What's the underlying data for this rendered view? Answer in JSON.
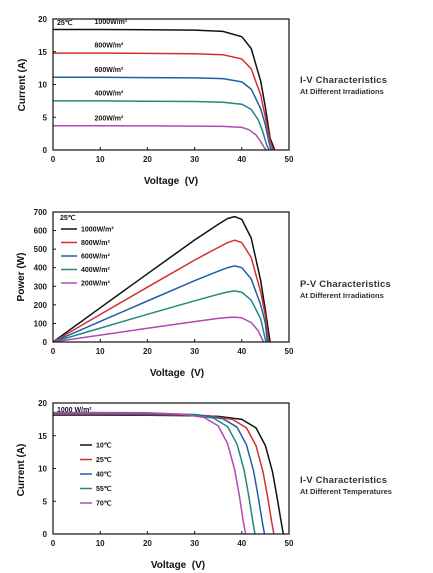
{
  "chart_data": [
    {
      "type": "line",
      "title": "I-V Characteristics",
      "subtitle": "At Different Irradiations",
      "xlabel": "Voltage  (V)",
      "ylabel": "Current (A)",
      "xlim": [
        0,
        50
      ],
      "ylim": [
        0,
        20
      ],
      "xticks": [
        "0",
        "10",
        "20",
        "30",
        "40",
        "50"
      ],
      "yticks": [
        "0",
        "5",
        "10",
        "15",
        "20"
      ],
      "note": "25℃",
      "legend": "inline-labels",
      "grid": false,
      "series": [
        {
          "name": "1000W/m²",
          "color": "#111111",
          "x": [
            0,
            10,
            20,
            30,
            36,
            40,
            42,
            44,
            45,
            46,
            47
          ],
          "y": [
            18.4,
            18.4,
            18.35,
            18.3,
            18.1,
            17.3,
            15.5,
            10.5,
            6.5,
            1.8,
            0
          ]
        },
        {
          "name": "800W/m²",
          "color": "#d32f2f",
          "x": [
            0,
            10,
            20,
            30,
            36,
            40,
            42,
            44,
            45,
            46,
            46.6
          ],
          "y": [
            14.8,
            14.8,
            14.75,
            14.7,
            14.55,
            13.9,
            12.4,
            8.4,
            5.0,
            1.4,
            0
          ]
        },
        {
          "name": "600W/m²",
          "color": "#1f5fa8",
          "x": [
            0,
            10,
            20,
            30,
            36,
            40,
            42,
            44,
            45,
            45.8,
            46.2
          ],
          "y": [
            11.1,
            11.1,
            11.05,
            11.0,
            10.9,
            10.4,
            9.3,
            6.3,
            3.8,
            1.0,
            0
          ]
        },
        {
          "name": "400W/m²",
          "color": "#1f8a7a",
          "x": [
            0,
            10,
            20,
            30,
            36,
            40,
            42,
            43.5,
            44.5,
            45.3,
            45.8
          ],
          "y": [
            7.5,
            7.5,
            7.45,
            7.4,
            7.3,
            7.0,
            6.2,
            4.6,
            2.7,
            0.7,
            0
          ]
        },
        {
          "name": "200W/m²",
          "color": "#b04ab3",
          "x": [
            0,
            10,
            20,
            30,
            36,
            40,
            41.5,
            43,
            44,
            44.8,
            45.2
          ],
          "y": [
            3.7,
            3.7,
            3.68,
            3.65,
            3.6,
            3.45,
            3.1,
            2.3,
            1.3,
            0.3,
            0
          ]
        }
      ]
    },
    {
      "type": "line",
      "title": "P-V Characteristics",
      "subtitle": "At Different Irradiations",
      "xlabel": "Voltage  (V)",
      "ylabel": "Power (W)",
      "xlim": [
        0,
        50
      ],
      "ylim": [
        0,
        700
      ],
      "xticks": [
        "0",
        "10",
        "20",
        "30",
        "40",
        "50"
      ],
      "yticks": [
        "0",
        "100",
        "200",
        "300",
        "400",
        "500",
        "600",
        "700"
      ],
      "note": "25℃",
      "legend": "top-left",
      "grid": false,
      "series": [
        {
          "name": "1000W/m²",
          "color": "#111111",
          "x": [
            0,
            10,
            20,
            30,
            35,
            37,
            38.5,
            40,
            42,
            44,
            45,
            46
          ],
          "y": [
            0,
            184,
            367,
            549,
            633,
            665,
            675,
            660,
            560,
            330,
            170,
            0
          ]
        },
        {
          "name": "800W/m²",
          "color": "#d32f2f",
          "x": [
            0,
            10,
            20,
            30,
            35,
            37,
            38.5,
            40,
            42,
            44,
            45,
            45.7
          ],
          "y": [
            0,
            148,
            295,
            441,
            509,
            535,
            548,
            535,
            455,
            270,
            140,
            0
          ]
        },
        {
          "name": "600W/m²",
          "color": "#1f5fa8",
          "x": [
            0,
            10,
            20,
            30,
            35,
            37,
            38.5,
            40,
            42,
            44,
            45,
            45.4
          ],
          "y": [
            0,
            111,
            221,
            330,
            381,
            400,
            410,
            400,
            340,
            200,
            100,
            0
          ]
        },
        {
          "name": "400W/m²",
          "color": "#1f8a7a",
          "x": [
            0,
            10,
            20,
            30,
            35,
            37,
            38.5,
            40,
            42,
            44,
            45.1
          ],
          "y": [
            0,
            75,
            149,
            222,
            257,
            269,
            275,
            268,
            225,
            125,
            0
          ]
        },
        {
          "name": "200W/m²",
          "color": "#b04ab3",
          "x": [
            0,
            10,
            20,
            30,
            35,
            37,
            38.5,
            40,
            42,
            43.5,
            44.6
          ],
          "y": [
            0,
            37,
            74,
            110,
            127,
            132,
            134,
            130,
            105,
            60,
            0
          ]
        }
      ]
    },
    {
      "type": "line",
      "title": "I-V Characteristics",
      "subtitle": "At Different Temperatures",
      "xlabel": "Voltage  (V)",
      "ylabel": "Current (A)",
      "xlim": [
        0,
        50
      ],
      "ylim": [
        0,
        20
      ],
      "xticks": [
        "0",
        "10",
        "20",
        "30",
        "40",
        "50"
      ],
      "yticks": [
        "0",
        "5",
        "10",
        "15",
        "20"
      ],
      "note": "1000 W/m²",
      "legend": "center-left",
      "grid": false,
      "series": [
        {
          "name": "10℃",
          "color": "#111111",
          "x": [
            0,
            10,
            20,
            30,
            35,
            40,
            43,
            45,
            46.5,
            47.5,
            48.3,
            48.8
          ],
          "y": [
            18.15,
            18.15,
            18.12,
            18.05,
            17.95,
            17.5,
            16.2,
            13.5,
            9.5,
            5.5,
            2.0,
            0
          ]
        },
        {
          "name": "25℃",
          "color": "#d32f2f",
          "x": [
            0,
            10,
            20,
            30,
            33,
            38,
            41,
            43,
            44.5,
            45.5,
            46.3,
            46.8
          ],
          "y": [
            18.25,
            18.25,
            18.22,
            18.15,
            18.05,
            17.5,
            16.2,
            13.5,
            9.5,
            5.5,
            2.0,
            0
          ]
        },
        {
          "name": "40℃",
          "color": "#1f5fa8",
          "x": [
            0,
            10,
            20,
            30,
            31,
            36,
            39,
            41,
            42.5,
            43.5,
            44.3,
            44.8
          ],
          "y": [
            18.35,
            18.35,
            18.32,
            18.25,
            18.15,
            17.6,
            16.3,
            13.6,
            9.6,
            5.6,
            2.0,
            0
          ]
        },
        {
          "name": "55℃",
          "color": "#1f8a7a",
          "x": [
            0,
            10,
            20,
            29,
            34,
            37,
            39,
            40.5,
            41.5,
            42.3,
            42.8
          ],
          "y": [
            18.45,
            18.45,
            18.42,
            18.25,
            17.7,
            16.4,
            13.7,
            9.7,
            5.7,
            2.0,
            0
          ]
        },
        {
          "name": "70℃",
          "color": "#b04ab3",
          "x": [
            0,
            10,
            20,
            27,
            32,
            35,
            37,
            38.5,
            39.5,
            40.3,
            40.8
          ],
          "y": [
            18.55,
            18.55,
            18.52,
            18.3,
            17.8,
            16.5,
            13.8,
            9.8,
            5.8,
            2.0,
            0
          ]
        }
      ]
    }
  ]
}
